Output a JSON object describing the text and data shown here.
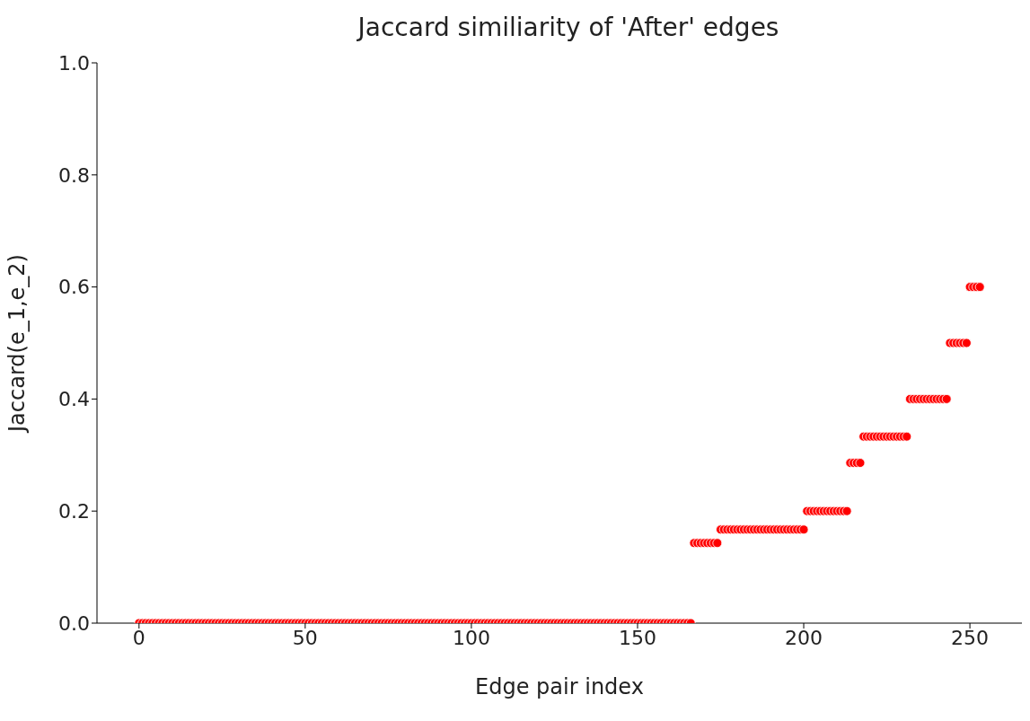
{
  "chart_data": {
    "type": "scatter",
    "title": "Jaccard similiarity of 'After' edges",
    "xlabel": "Edge pair index",
    "ylabel": "Jaccard(e_1,e_2)",
    "x": [
      0,
      1,
      2,
      3,
      4,
      5,
      6,
      7,
      8,
      9,
      10,
      11,
      12,
      13,
      14,
      15,
      16,
      17,
      18,
      19,
      20,
      21,
      22,
      23,
      24,
      25,
      26,
      27,
      28,
      29,
      30,
      31,
      32,
      33,
      34,
      35,
      36,
      37,
      38,
      39,
      40,
      41,
      42,
      43,
      44,
      45,
      46,
      47,
      48,
      49,
      50,
      51,
      52,
      53,
      54,
      55,
      56,
      57,
      58,
      59,
      60,
      61,
      62,
      63,
      64,
      65,
      66,
      67,
      68,
      69,
      70,
      71,
      72,
      73,
      74,
      75,
      76,
      77,
      78,
      79,
      80,
      81,
      82,
      83,
      84,
      85,
      86,
      87,
      88,
      89,
      90,
      91,
      92,
      93,
      94,
      95,
      96,
      97,
      98,
      99,
      100,
      101,
      102,
      103,
      104,
      105,
      106,
      107,
      108,
      109,
      110,
      111,
      112,
      113,
      114,
      115,
      116,
      117,
      118,
      119,
      120,
      121,
      122,
      123,
      124,
      125,
      126,
      127,
      128,
      129,
      130,
      131,
      132,
      133,
      134,
      135,
      136,
      137,
      138,
      139,
      140,
      141,
      142,
      143,
      144,
      145,
      146,
      147,
      148,
      149,
      150,
      151,
      152,
      153,
      154,
      155,
      156,
      157,
      158,
      159,
      160,
      161,
      162,
      163,
      164,
      165,
      166,
      167,
      168,
      169,
      170,
      171,
      172,
      173,
      174,
      175,
      176,
      177,
      178,
      179,
      180,
      181,
      182,
      183,
      184,
      185,
      186,
      187,
      188,
      189,
      190,
      191,
      192,
      193,
      194,
      195,
      196,
      197,
      198,
      199,
      200,
      201,
      202,
      203,
      204,
      205,
      206,
      207,
      208,
      209,
      210,
      211,
      212,
      213,
      214,
      215,
      216,
      217,
      218,
      219,
      220,
      221,
      222,
      223,
      224,
      225,
      226,
      227,
      228,
      229,
      230,
      231,
      232,
      233,
      234,
      235,
      236,
      237,
      238,
      239,
      240,
      241,
      242,
      243,
      244,
      245,
      246,
      247,
      248,
      249,
      250,
      251,
      252,
      253
    ],
    "series": [
      {
        "color": "#ff0000",
        "values": [
          0,
          0,
          0,
          0,
          0,
          0,
          0,
          0,
          0,
          0,
          0,
          0,
          0,
          0,
          0,
          0,
          0,
          0,
          0,
          0,
          0,
          0,
          0,
          0,
          0,
          0,
          0,
          0,
          0,
          0,
          0,
          0,
          0,
          0,
          0,
          0,
          0,
          0,
          0,
          0,
          0,
          0,
          0,
          0,
          0,
          0,
          0,
          0,
          0,
          0,
          0,
          0,
          0,
          0,
          0,
          0,
          0,
          0,
          0,
          0,
          0,
          0,
          0,
          0,
          0,
          0,
          0,
          0,
          0,
          0,
          0,
          0,
          0,
          0,
          0,
          0,
          0,
          0,
          0,
          0,
          0,
          0,
          0,
          0,
          0,
          0,
          0,
          0,
          0,
          0,
          0,
          0,
          0,
          0,
          0,
          0,
          0,
          0,
          0,
          0,
          0,
          0,
          0,
          0,
          0,
          0,
          0,
          0,
          0,
          0,
          0,
          0,
          0,
          0,
          0,
          0,
          0,
          0,
          0,
          0,
          0,
          0,
          0,
          0,
          0,
          0,
          0,
          0,
          0,
          0,
          0,
          0,
          0,
          0,
          0,
          0,
          0,
          0,
          0,
          0,
          0,
          0,
          0,
          0,
          0,
          0,
          0,
          0,
          0,
          0,
          0,
          0,
          0,
          0,
          0,
          0,
          0,
          0,
          0,
          0,
          0,
          0,
          0,
          0,
          0,
          0,
          0,
          0.143,
          0.143,
          0.143,
          0.143,
          0.143,
          0.143,
          0.143,
          0.143,
          0.167,
          0.167,
          0.167,
          0.167,
          0.167,
          0.167,
          0.167,
          0.167,
          0.167,
          0.167,
          0.167,
          0.167,
          0.167,
          0.167,
          0.167,
          0.167,
          0.167,
          0.167,
          0.167,
          0.167,
          0.167,
          0.167,
          0.167,
          0.167,
          0.167,
          0.167,
          0.2,
          0.2,
          0.2,
          0.2,
          0.2,
          0.2,
          0.2,
          0.2,
          0.2,
          0.2,
          0.2,
          0.2,
          0.2,
          0.286,
          0.286,
          0.286,
          0.286,
          0.333,
          0.333,
          0.333,
          0.333,
          0.333,
          0.333,
          0.333,
          0.333,
          0.333,
          0.333,
          0.333,
          0.333,
          0.333,
          0.333,
          0.4,
          0.4,
          0.4,
          0.4,
          0.4,
          0.4,
          0.4,
          0.4,
          0.4,
          0.4,
          0.4,
          0.4,
          0.5,
          0.5,
          0.5,
          0.5,
          0.5,
          0.5,
          0.6,
          0.6,
          0.6,
          0.6
        ]
      }
    ],
    "xlim": [
      -12.65,
      265.65
    ],
    "xticks": [
      0,
      50,
      100,
      150,
      200,
      250
    ],
    "ylim": [
      0,
      1
    ],
    "yticks": [
      {
        "value": 0,
        "label": "0.0"
      },
      0.2,
      0.4,
      0.6,
      0.8,
      {
        "value": 1,
        "label": "1.0"
      }
    ],
    "marker": "circle"
  }
}
